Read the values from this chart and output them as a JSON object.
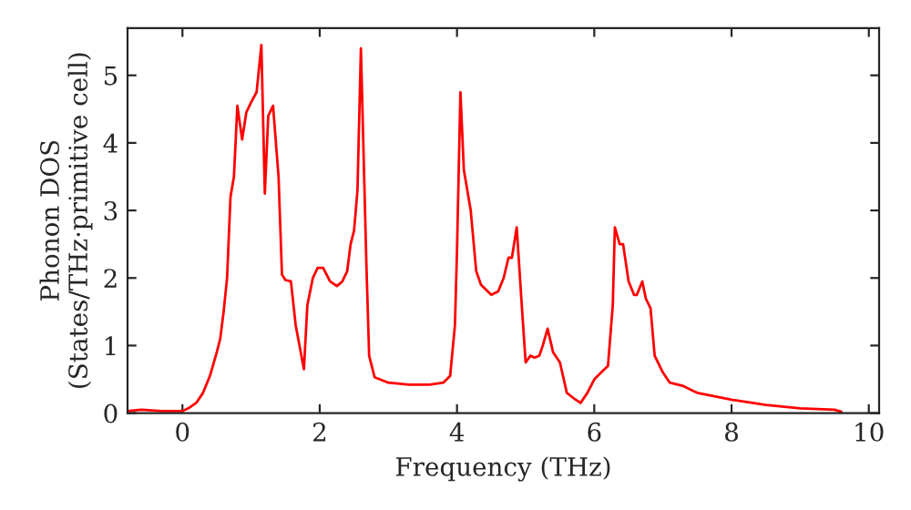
{
  "chart_data": {
    "type": "line",
    "xlabel": "Frequency (THz)",
    "ylabel": "Phonon DOS\n(States/THz·primitive cell)",
    "xlim": [
      -0.8,
      10.15
    ],
    "ylim": [
      0,
      5.7
    ],
    "xticks": [
      0,
      2,
      4,
      6,
      8,
      10
    ],
    "yticks": [
      0,
      1,
      2,
      3,
      4,
      5
    ],
    "grid": false,
    "legend": false,
    "series": [
      {
        "color": "#ff0000",
        "x": [
          -0.8,
          -0.6,
          -0.3,
          0,
          0.1,
          0.2,
          0.3,
          0.4,
          0.5,
          0.55,
          0.6,
          0.65,
          0.7,
          0.75,
          0.8,
          0.87,
          0.93,
          1.0,
          1.08,
          1.15,
          1.2,
          1.25,
          1.32,
          1.4,
          1.45,
          1.5,
          1.58,
          1.65,
          1.77,
          1.82,
          1.9,
          1.97,
          2.05,
          2.15,
          2.25,
          2.33,
          2.4,
          2.45,
          2.5,
          2.55,
          2.6,
          2.68,
          2.72,
          2.8,
          3.0,
          3.3,
          3.6,
          3.8,
          3.9,
          3.97,
          4.0,
          4.05,
          4.1,
          4.2,
          4.28,
          4.35,
          4.5,
          4.6,
          4.68,
          4.75,
          4.8,
          4.87,
          4.95,
          5.0,
          5.07,
          5.13,
          5.2,
          5.25,
          5.32,
          5.4,
          5.5,
          5.6,
          5.7,
          5.8,
          5.9,
          6.0,
          6.1,
          6.2,
          6.27,
          6.3,
          6.37,
          6.42,
          6.5,
          6.58,
          6.62,
          6.7,
          6.75,
          6.82,
          6.88,
          7.0,
          7.1,
          7.3,
          7.5,
          8.0,
          8.5,
          9.0,
          9.5,
          9.6
        ],
        "values": [
          0.03,
          0.05,
          0.03,
          0.03,
          0.08,
          0.15,
          0.3,
          0.55,
          0.9,
          1.1,
          1.5,
          2.0,
          3.2,
          3.5,
          4.55,
          4.05,
          4.45,
          4.6,
          4.75,
          5.45,
          3.25,
          4.4,
          4.55,
          3.5,
          2.05,
          1.97,
          1.95,
          1.3,
          0.65,
          1.6,
          2.0,
          2.15,
          2.15,
          1.95,
          1.88,
          1.95,
          2.1,
          2.5,
          2.7,
          3.3,
          5.4,
          2.2,
          0.85,
          0.53,
          0.45,
          0.42,
          0.42,
          0.45,
          0.55,
          1.3,
          2.4,
          4.75,
          3.6,
          3.0,
          2.1,
          1.9,
          1.75,
          1.8,
          2.0,
          2.3,
          2.3,
          2.75,
          1.5,
          0.75,
          0.85,
          0.82,
          0.85,
          1.0,
          1.25,
          0.9,
          0.75,
          0.3,
          0.22,
          0.15,
          0.3,
          0.5,
          0.6,
          0.7,
          1.6,
          2.75,
          2.5,
          2.5,
          1.95,
          1.75,
          1.75,
          1.95,
          1.7,
          1.55,
          0.85,
          0.6,
          0.45,
          0.4,
          0.3,
          0.2,
          0.12,
          0.07,
          0.05,
          0.02
        ]
      }
    ]
  }
}
